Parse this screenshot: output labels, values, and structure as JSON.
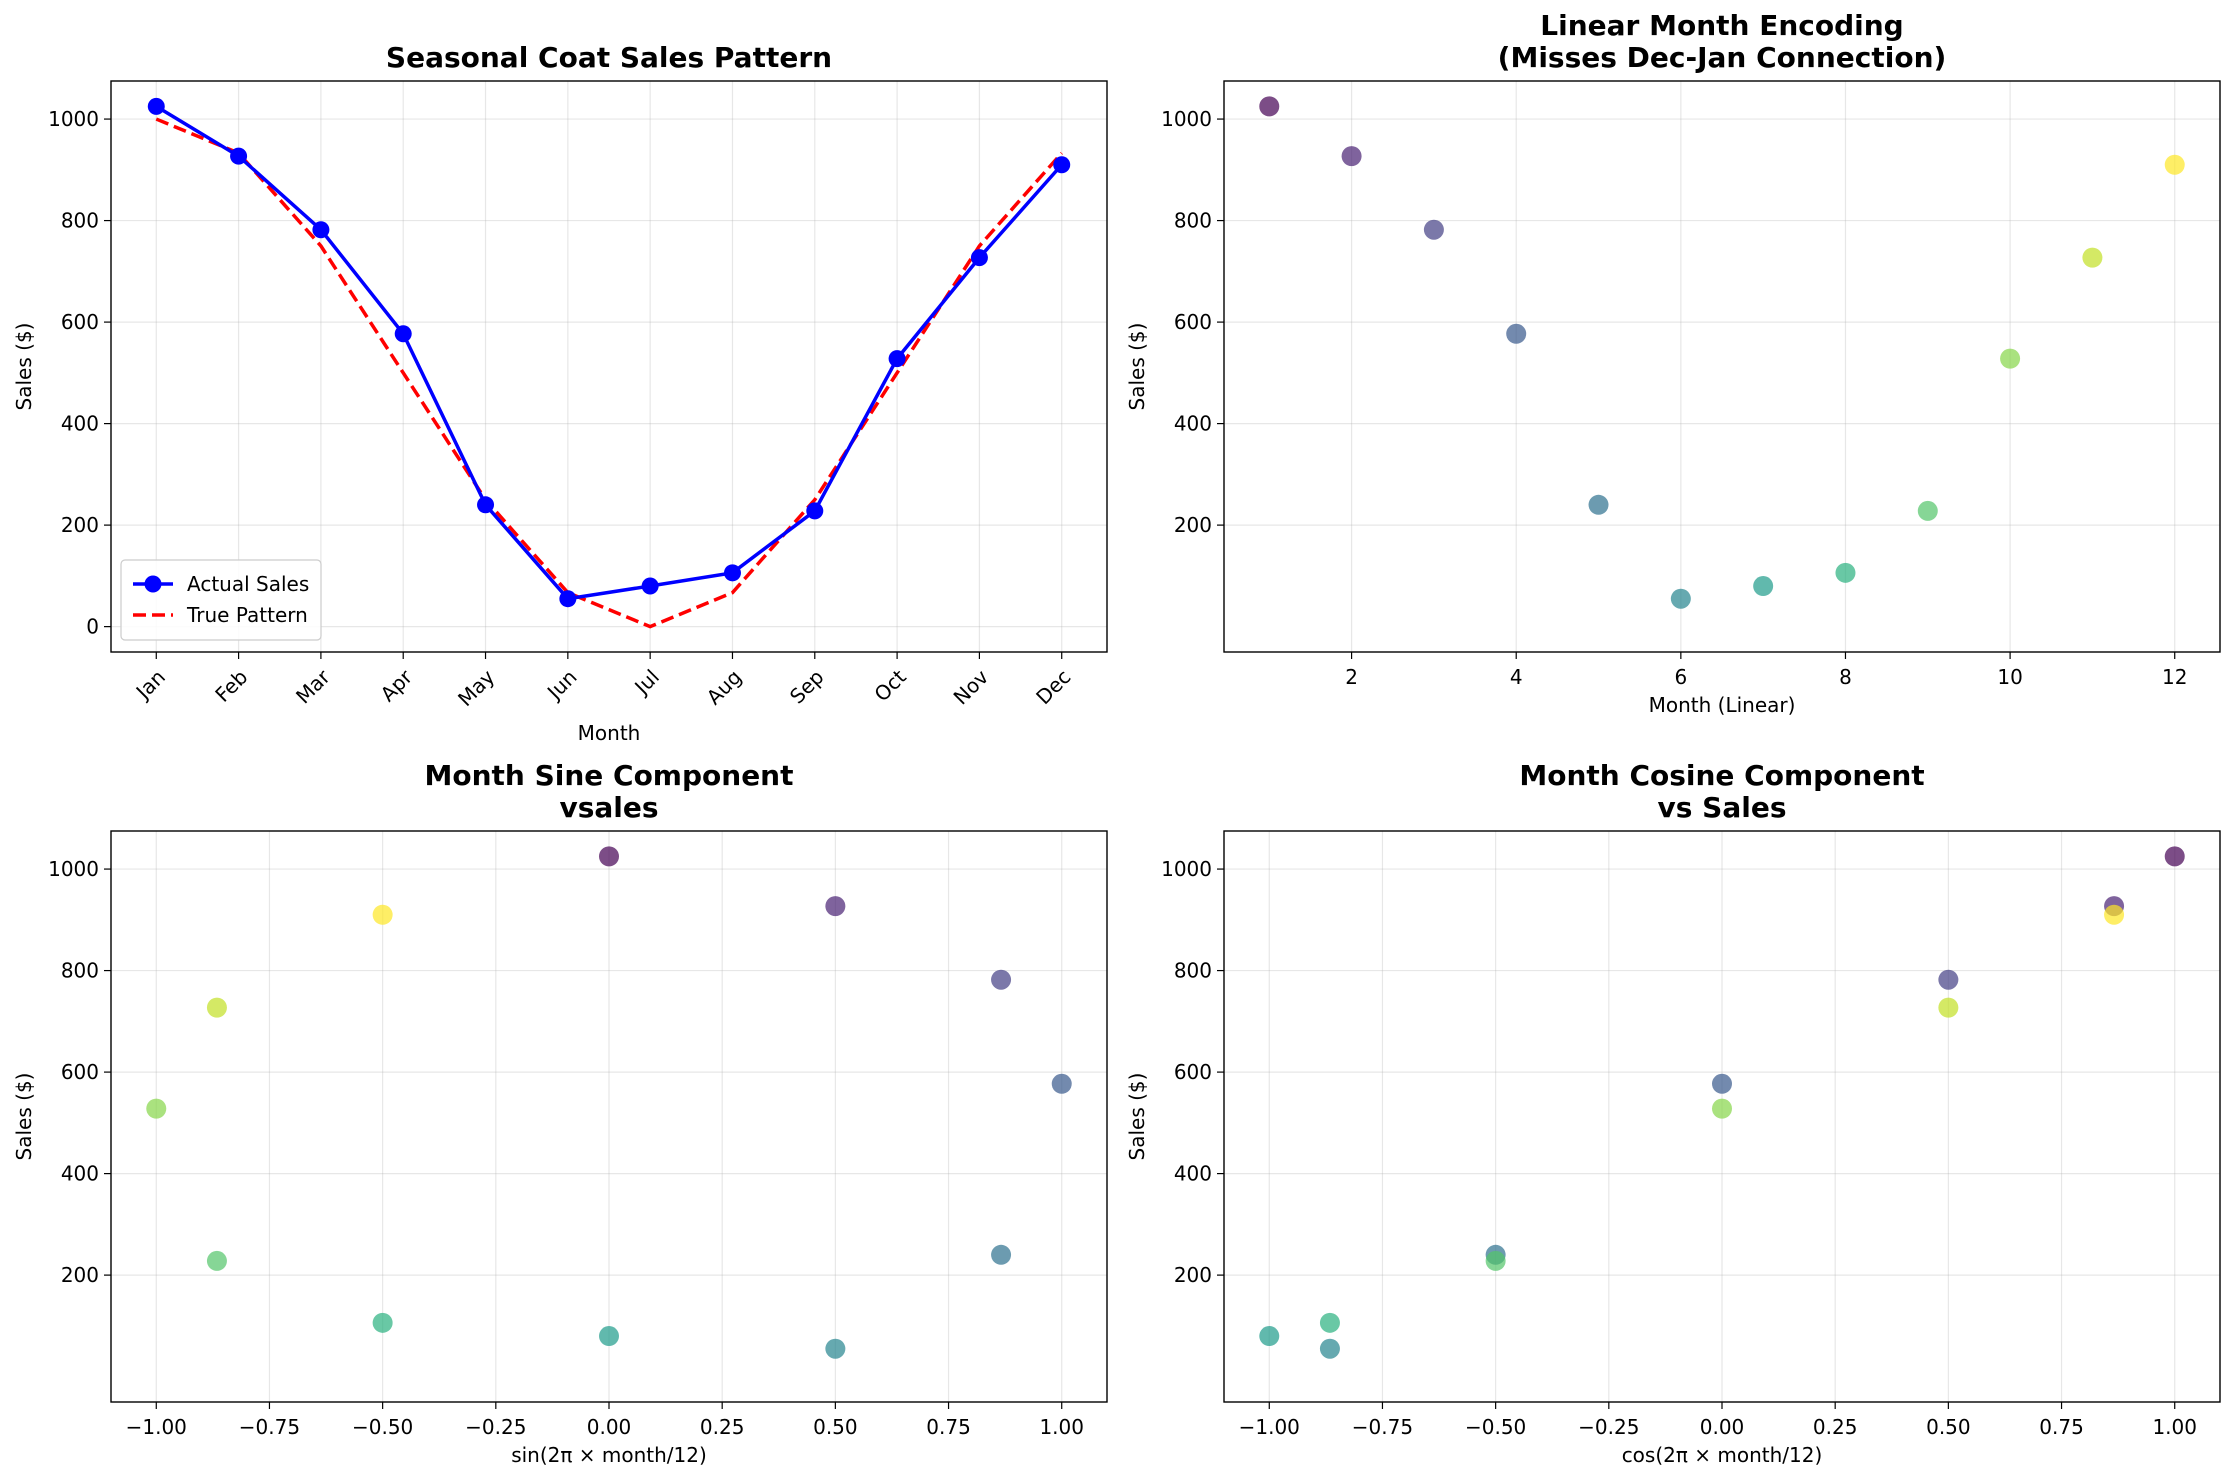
{
  "chart_data": [
    {
      "type": "line",
      "title": "Seasonal Coat Sales Pattern",
      "xlabel": "Month",
      "ylabel": "Sales ($)",
      "categories": [
        "Jan",
        "Feb",
        "Mar",
        "Apr",
        "May",
        "Jun",
        "Jul",
        "Aug",
        "Sep",
        "Oct",
        "Nov",
        "Dec"
      ],
      "xlim": [
        0.45,
        12.55
      ],
      "ylim": [
        -50,
        1075
      ],
      "yticks": [
        0,
        200,
        400,
        600,
        800,
        1000
      ],
      "grid": true,
      "legend_position": "lower-left",
      "series": [
        {
          "name": "Actual Sales",
          "color": "#0000ff",
          "style": "solid",
          "marker": "circle",
          "values": [
            1025,
            927,
            782,
            577,
            240,
            55,
            80,
            106,
            228,
            528,
            727,
            910
          ]
        },
        {
          "name": "True Pattern",
          "color": "#ff0000",
          "style": "dashed",
          "marker": "none",
          "values": [
            1000,
            933,
            750,
            500,
            250,
            67,
            0,
            67,
            250,
            500,
            750,
            933
          ]
        }
      ]
    },
    {
      "type": "scatter",
      "title": "Linear Month Encoding\n(Misses Dec-Jan Connection)",
      "xlabel": "Month (Linear)",
      "ylabel": "Sales ($)",
      "xlim": [
        0.45,
        12.55
      ],
      "ylim": [
        -50,
        1075
      ],
      "xticks": [
        2,
        4,
        6,
        8,
        10,
        12
      ],
      "yticks": [
        200,
        400,
        600,
        800,
        1000
      ],
      "grid": true,
      "points": [
        {
          "x": 1,
          "y": 1025,
          "color": "#440154"
        },
        {
          "x": 2,
          "y": 927,
          "color": "#482173"
        },
        {
          "x": 3,
          "y": 782,
          "color": "#433e85"
        },
        {
          "x": 4,
          "y": 577,
          "color": "#38598c"
        },
        {
          "x": 5,
          "y": 240,
          "color": "#2d708e"
        },
        {
          "x": 6,
          "y": 55,
          "color": "#25858e"
        },
        {
          "x": 7,
          "y": 80,
          "color": "#1e9b8a"
        },
        {
          "x": 8,
          "y": 106,
          "color": "#2ab07f"
        },
        {
          "x": 9,
          "y": 228,
          "color": "#52c569"
        },
        {
          "x": 10,
          "y": 528,
          "color": "#86d549"
        },
        {
          "x": 11,
          "y": 727,
          "color": "#c2df23"
        },
        {
          "x": 12,
          "y": 910,
          "color": "#fde725"
        }
      ]
    },
    {
      "type": "scatter",
      "title": "Month Sine Component\nvsales",
      "xlabel": "sin(2π × month/12)",
      "ylabel": "Sales ($)",
      "xlim": [
        -1.1,
        1.1
      ],
      "ylim": [
        -50,
        1075
      ],
      "xticks": [
        -1.0,
        -0.75,
        -0.5,
        -0.25,
        0.0,
        0.25,
        0.5,
        0.75,
        1.0
      ],
      "yticks": [
        200,
        400,
        600,
        800,
        1000
      ],
      "grid": true,
      "points": [
        {
          "x": 0.0,
          "y": 1025,
          "color": "#440154"
        },
        {
          "x": 0.5,
          "y": 927,
          "color": "#482173"
        },
        {
          "x": 0.866,
          "y": 782,
          "color": "#433e85"
        },
        {
          "x": 1.0,
          "y": 577,
          "color": "#38598c"
        },
        {
          "x": 0.866,
          "y": 240,
          "color": "#2d708e"
        },
        {
          "x": 0.5,
          "y": 55,
          "color": "#25858e"
        },
        {
          "x": 0.0,
          "y": 80,
          "color": "#1e9b8a"
        },
        {
          "x": -0.5,
          "y": 106,
          "color": "#2ab07f"
        },
        {
          "x": -0.866,
          "y": 228,
          "color": "#52c569"
        },
        {
          "x": -1.0,
          "y": 528,
          "color": "#86d549"
        },
        {
          "x": -0.866,
          "y": 727,
          "color": "#c2df23"
        },
        {
          "x": -0.5,
          "y": 910,
          "color": "#fde725"
        }
      ]
    },
    {
      "type": "scatter",
      "title": "Month Cosine Component\nvs Sales",
      "xlabel": "cos(2π × month/12)",
      "ylabel": "Sales ($)",
      "xlim": [
        -1.1,
        1.1
      ],
      "ylim": [
        -50,
        1075
      ],
      "xticks": [
        -1.0,
        -0.75,
        -0.5,
        -0.25,
        0.0,
        0.25,
        0.5,
        0.75,
        1.0
      ],
      "yticks": [
        200,
        400,
        600,
        800,
        1000
      ],
      "grid": true,
      "points": [
        {
          "x": 1.0,
          "y": 1025,
          "color": "#440154"
        },
        {
          "x": 0.866,
          "y": 927,
          "color": "#482173"
        },
        {
          "x": 0.5,
          "y": 782,
          "color": "#433e85"
        },
        {
          "x": 0.0,
          "y": 577,
          "color": "#38598c"
        },
        {
          "x": -0.5,
          "y": 240,
          "color": "#2d708e"
        },
        {
          "x": -0.866,
          "y": 55,
          "color": "#25858e"
        },
        {
          "x": -1.0,
          "y": 80,
          "color": "#1e9b8a"
        },
        {
          "x": -0.866,
          "y": 106,
          "color": "#2ab07f"
        },
        {
          "x": -0.5,
          "y": 228,
          "color": "#52c569"
        },
        {
          "x": 0.0,
          "y": 528,
          "color": "#86d549"
        },
        {
          "x": 0.5,
          "y": 727,
          "color": "#c2df23"
        },
        {
          "x": 0.866,
          "y": 910,
          "color": "#fde725"
        }
      ]
    }
  ]
}
